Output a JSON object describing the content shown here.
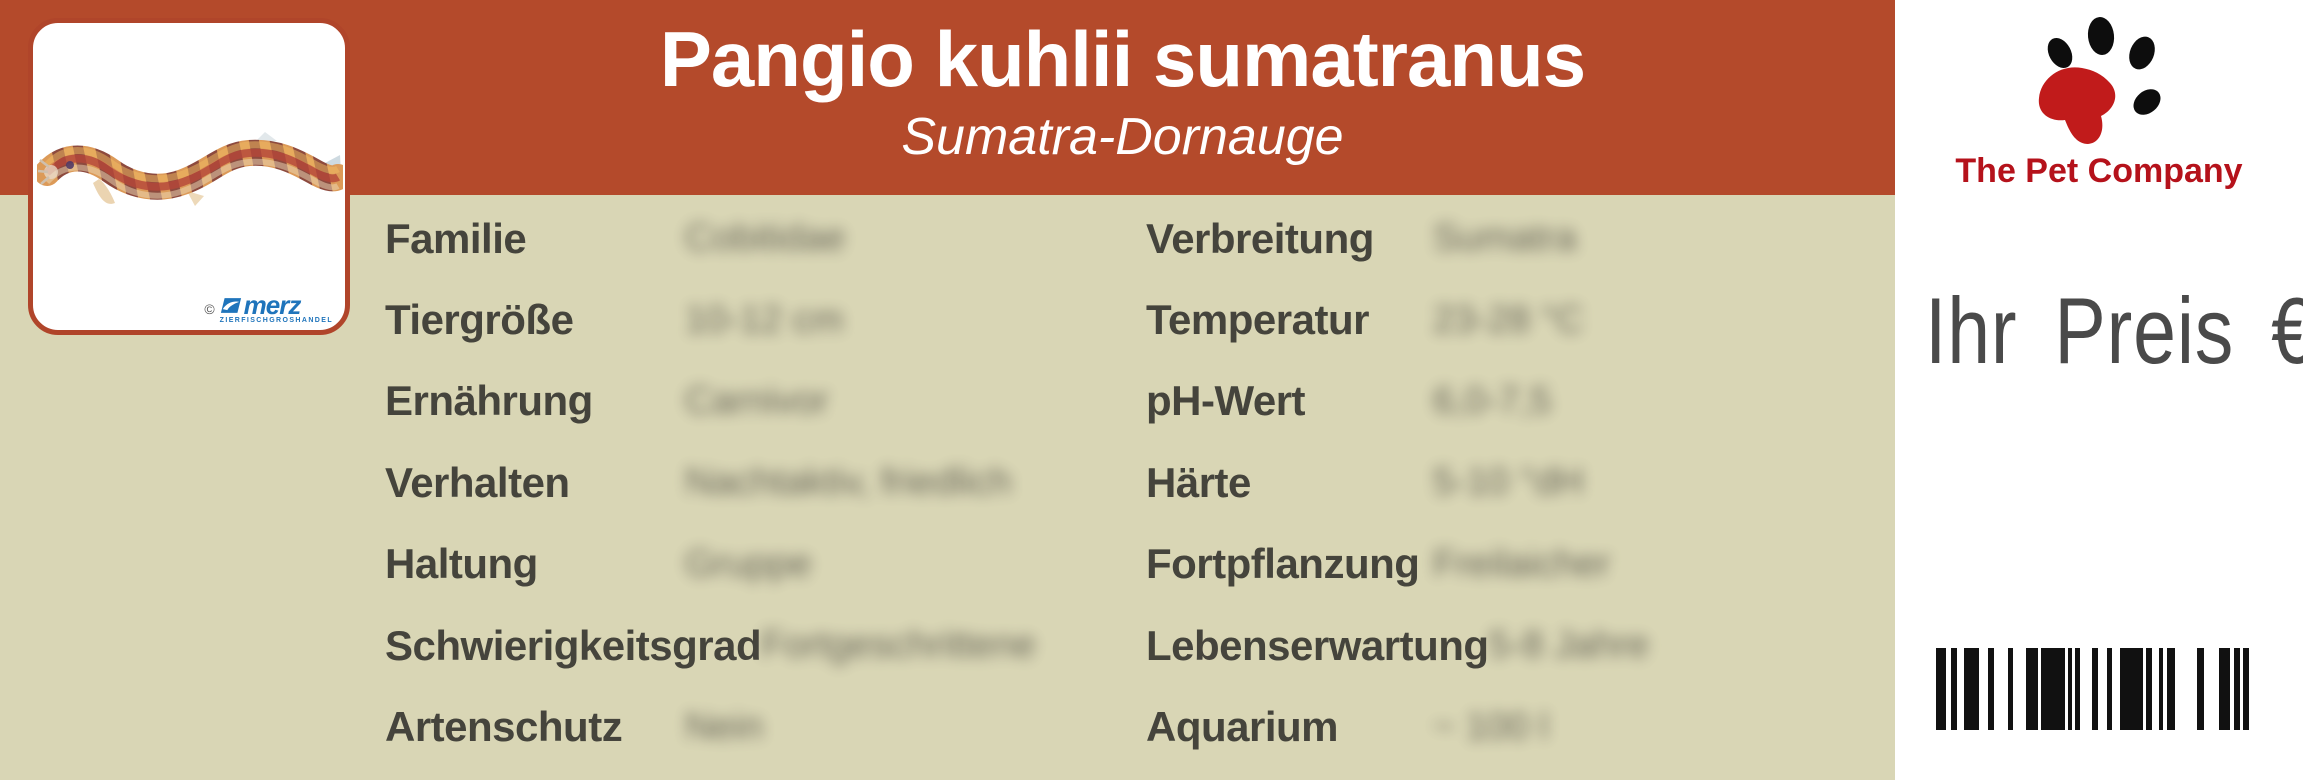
{
  "header": {
    "title": "Pangio kuhlii sumatranus",
    "subtitle": "Sumatra-Dornauge"
  },
  "photo_credit": {
    "copyright": "©",
    "brand": "merz",
    "tagline": "ZIERFISCHGROSHANDEL"
  },
  "specs": {
    "left": [
      {
        "label": "Familie",
        "value": "Cobitidae"
      },
      {
        "label": "Tiergröße",
        "value": "10-12 cm"
      },
      {
        "label": "Ernährung",
        "value": "Carnivor"
      },
      {
        "label": "Verhalten",
        "value": "Nachtaktiv, friedlich"
      },
      {
        "label": "Haltung",
        "value": "Gruppe"
      },
      {
        "label": "Schwierigkeitsgrad",
        "value": "Fortgeschrittene"
      },
      {
        "label": "Artenschutz",
        "value": "Nein"
      }
    ],
    "right": [
      {
        "label": "Verbreitung",
        "value": "Sumatra"
      },
      {
        "label": "Temperatur",
        "value": "23-28 °C"
      },
      {
        "label": "pH-Wert",
        "value": "6,0-7,5"
      },
      {
        "label": "Härte",
        "value": "5-10 °dH"
      },
      {
        "label": "Fortpflanzung",
        "value": "Freilaicher"
      },
      {
        "label": "Lebenserwartung",
        "value": "5-8 Jahre"
      },
      {
        "label": "Aquarium",
        "value": "~ 100 l"
      }
    ]
  },
  "side_panel": {
    "brand": "The Pet Company",
    "price_label": "Ihr Preis €",
    "barcode_pattern": [
      10,
      5,
      6,
      7,
      15,
      9,
      6,
      14,
      5,
      13,
      12,
      3,
      24,
      3,
      4,
      3,
      5,
      12,
      6,
      9,
      5,
      8,
      23,
      3,
      6,
      7,
      4,
      4,
      8,
      22,
      7,
      15,
      11,
      4,
      6,
      3,
      6
    ]
  },
  "colors": {
    "header_bg": "#b44a2b",
    "specs_bg": "#d9d6b5",
    "label_text": "#45443c",
    "value_text": "#56544a",
    "frame_border": "#b0452a",
    "brand_red": "#b5121b",
    "paw_red": "#c11b1b",
    "price_text": "#4a4a4a",
    "merz_blue": "#1f74bb"
  }
}
